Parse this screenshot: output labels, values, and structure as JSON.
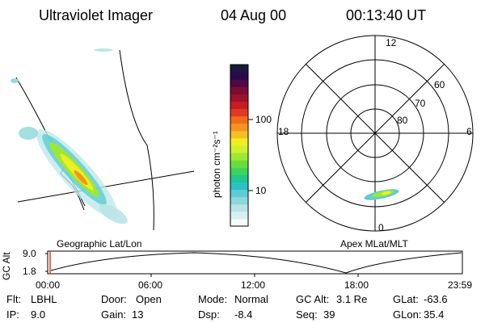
{
  "header": {
    "instrument": "Ultraviolet Imager",
    "date": "04 Aug 00",
    "time": "00:13:40 UT"
  },
  "colorbar": {
    "label": "photon cm⁻²s⁻¹",
    "ticks": [
      "100",
      "10"
    ],
    "colors": [
      "#f4fbfb",
      "#d8eff0",
      "#b9e3e6",
      "#8dd7da",
      "#5ccdd2",
      "#29c3c5",
      "#22c68f",
      "#3cd45c",
      "#6bdd3a",
      "#9ee832",
      "#cdf02f",
      "#eeee22",
      "#f6c11f",
      "#f7941e",
      "#f36b1c",
      "#e03a1f",
      "#c51d24",
      "#a0102a",
      "#7a0c36",
      "#4d0a45",
      "#2a0b4a",
      "#1a1a3a"
    ]
  },
  "polar": {
    "mlt_labels": {
      "top": "12",
      "left": "18",
      "right": "6",
      "bottom": "0"
    },
    "lat_labels": [
      "60",
      "70",
      "80"
    ]
  },
  "map_labels": {
    "left": "Geographic Lat/Lon",
    "right": "Apex MLat/MLT"
  },
  "timeline": {
    "ylabel": "GC Alt",
    "yticks": [
      "9.0",
      "1.8"
    ],
    "xticks": [
      "00:00",
      "06:00",
      "12:00",
      "18:00",
      "23:59"
    ]
  },
  "info": {
    "row1": [
      {
        "label": "Flt:",
        "value": "LBHL"
      },
      {
        "label": "Door:",
        "value": "Open"
      },
      {
        "label": "Mode:",
        "value": "Normal"
      },
      {
        "label": "GC Alt:",
        "value": "3.1 Re"
      },
      {
        "label": "GLat:",
        "value": "-63.6"
      }
    ],
    "row2": [
      {
        "label": "IP:",
        "value": "9.0"
      },
      {
        "label": "Gain:",
        "value": "13"
      },
      {
        "label": "Dsp:",
        "value": "-8.4"
      },
      {
        "label": "Seq:",
        "value": "39"
      },
      {
        "label": "GLon:",
        "value": "35.4"
      }
    ]
  }
}
